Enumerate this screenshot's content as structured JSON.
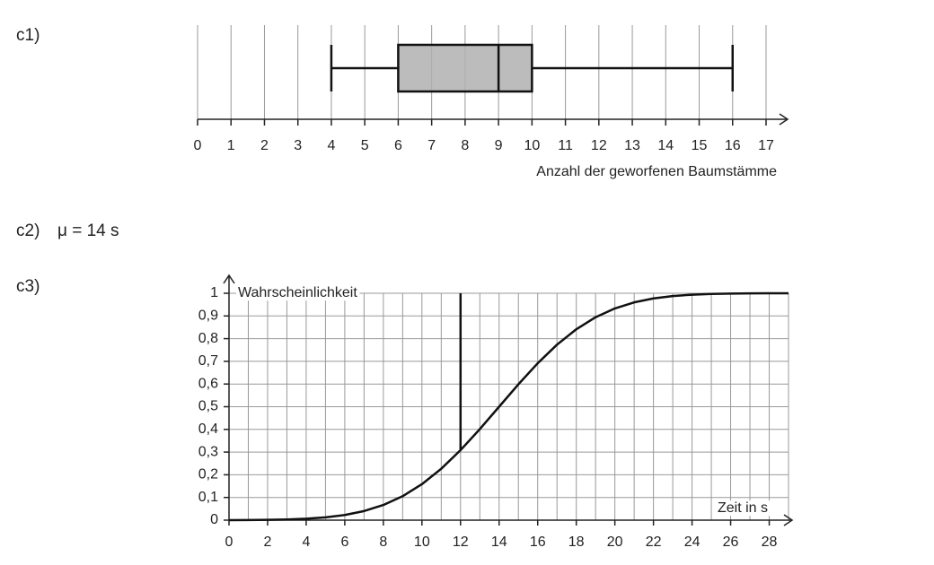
{
  "labels": {
    "c1": "c1)",
    "c2": "c2)",
    "c2_result": "μ = 14 s",
    "c3": "c3)"
  },
  "chart_data": [
    {
      "type": "box",
      "xlabel": "Anzahl der geworfenen Baumstämme",
      "min": 4,
      "q1": 6,
      "median": 9,
      "q3": 10,
      "max": 16,
      "xlim": [
        0,
        17
      ],
      "xticks": [
        0,
        1,
        2,
        3,
        4,
        5,
        6,
        7,
        8,
        9,
        10,
        11,
        12,
        13,
        14,
        15,
        16,
        17
      ],
      "grid": true,
      "color": "#b0b0b0"
    },
    {
      "type": "line",
      "xlabel": "Zeit in s",
      "ylabel": "Wahrscheinlichkeit",
      "x": [
        0,
        1,
        2,
        3,
        4,
        5,
        6,
        7,
        8,
        9,
        10,
        11,
        12,
        13,
        14,
        15,
        16,
        17,
        18,
        19,
        20,
        21,
        22,
        23,
        24,
        25,
        26,
        27,
        28,
        29
      ],
      "values": [
        0.0002,
        0.0006,
        0.0013,
        0.003,
        0.0062,
        0.0122,
        0.0228,
        0.0401,
        0.0668,
        0.1056,
        0.1587,
        0.2266,
        0.3085,
        0.4013,
        0.5,
        0.5987,
        0.6915,
        0.7734,
        0.8413,
        0.8944,
        0.9332,
        0.9599,
        0.9772,
        0.9878,
        0.9938,
        0.997,
        0.9987,
        0.9994,
        0.9998,
        0.9999
      ],
      "color": "#111111",
      "xlim": [
        0,
        29
      ],
      "ylim": [
        0,
        1
      ],
      "xticks": [
        0,
        2,
        4,
        6,
        8,
        10,
        12,
        14,
        16,
        18,
        20,
        22,
        24,
        26,
        28
      ],
      "xminor": [
        1,
        3,
        5,
        7,
        9,
        11,
        13,
        15,
        17,
        19,
        21,
        23,
        25,
        27,
        29
      ],
      "yticks": [
        0,
        {
          "value": 0.1,
          "label": "0,1"
        },
        {
          "value": 0.2,
          "label": "0,2"
        },
        {
          "value": 0.3,
          "label": "0,3"
        },
        {
          "value": 0.4,
          "label": "0,4"
        },
        {
          "value": 0.5,
          "label": "0,5"
        },
        {
          "value": 0.6,
          "label": "0,6"
        },
        {
          "value": 0.7,
          "label": "0,7"
        },
        {
          "value": 0.8,
          "label": "0,8"
        },
        {
          "value": 0.9,
          "label": "0,9"
        },
        1
      ],
      "grid": true,
      "vertical_line": {
        "x": 12,
        "y": [
          0.31,
          1
        ]
      }
    }
  ]
}
